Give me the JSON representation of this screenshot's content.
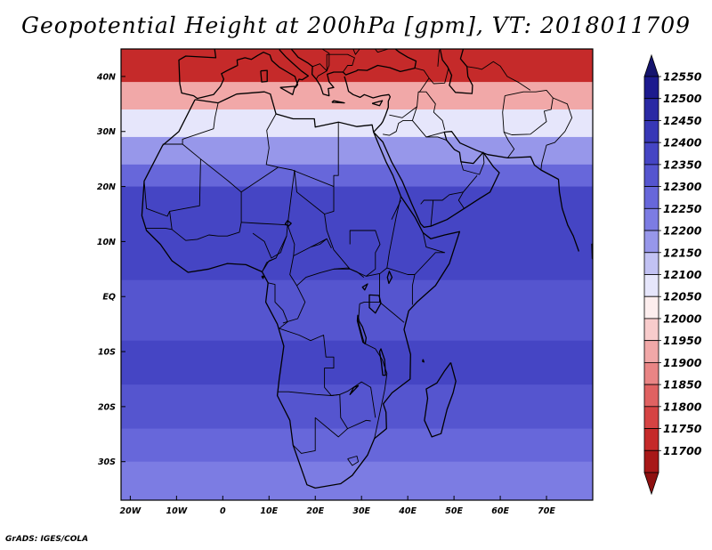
{
  "title": "Geopotential Height at 200hPa [gpm], VT: 2018011709",
  "credit": "GrADS: IGES/COLA",
  "map": {
    "lon_range": [
      -22,
      80
    ],
    "lat_range": [
      -37,
      45
    ],
    "lon_ticks": [
      {
        "value": -20,
        "label": "20W"
      },
      {
        "value": -10,
        "label": "10W"
      },
      {
        "value": 0,
        "label": "0"
      },
      {
        "value": 10,
        "label": "10E"
      },
      {
        "value": 20,
        "label": "20E"
      },
      {
        "value": 30,
        "label": "30E"
      },
      {
        "value": 40,
        "label": "40E"
      },
      {
        "value": 50,
        "label": "50E"
      },
      {
        "value": 60,
        "label": "60E"
      },
      {
        "value": 70,
        "label": "70E"
      }
    ],
    "lat_ticks": [
      {
        "value": 40,
        "label": "40N"
      },
      {
        "value": 30,
        "label": "30N"
      },
      {
        "value": 20,
        "label": "20N"
      },
      {
        "value": 10,
        "label": "10N"
      },
      {
        "value": 0,
        "label": "EQ"
      },
      {
        "value": -10,
        "label": "10S"
      },
      {
        "value": -20,
        "label": "20S"
      },
      {
        "value": -30,
        "label": "30S"
      }
    ],
    "field_bands_by_latitude": [
      {
        "lat_top": 45,
        "lat_bottom": 39,
        "value_gpm": 11750
      },
      {
        "lat_top": 39,
        "lat_bottom": 34,
        "value_gpm": 11950
      },
      {
        "lat_top": 34,
        "lat_bottom": 29,
        "value_gpm": 12100
      },
      {
        "lat_top": 29,
        "lat_bottom": 24,
        "value_gpm": 12200
      },
      {
        "lat_top": 24,
        "lat_bottom": 20,
        "value_gpm": 12300
      },
      {
        "lat_top": 20,
        "lat_bottom": 3,
        "value_gpm": 12400
      },
      {
        "lat_top": 3,
        "lat_bottom": -8,
        "value_gpm": 12350
      },
      {
        "lat_top": -8,
        "lat_bottom": -16,
        "value_gpm": 12400
      },
      {
        "lat_top": -16,
        "lat_bottom": -24,
        "value_gpm": 12350
      },
      {
        "lat_top": -24,
        "lat_bottom": -30,
        "value_gpm": 12300
      },
      {
        "lat_top": -30,
        "lat_bottom": -37,
        "value_gpm": 12250
      }
    ]
  },
  "colorbar": {
    "levels": [
      {
        "label": "12550",
        "color": "#1c1a8e"
      },
      {
        "label": "12500",
        "color": "#2a29a4"
      },
      {
        "label": "12450",
        "color": "#3737b6"
      },
      {
        "label": "12400",
        "color": "#4545c4"
      },
      {
        "label": "12350",
        "color": "#5555cf"
      },
      {
        "label": "12300",
        "color": "#6767da"
      },
      {
        "label": "12250",
        "color": "#7c7ce3"
      },
      {
        "label": "12200",
        "color": "#9797ea"
      },
      {
        "label": "12150",
        "color": "#c2c2f3"
      },
      {
        "label": "12100",
        "color": "#e6e6fb"
      },
      {
        "label": "12050",
        "color": "#fdeeee"
      },
      {
        "label": "12000",
        "color": "#f8cccc"
      },
      {
        "label": "11950",
        "color": "#f1a8a8"
      },
      {
        "label": "11900",
        "color": "#e98585"
      },
      {
        "label": "11850",
        "color": "#e06262"
      },
      {
        "label": "11800",
        "color": "#d64444"
      },
      {
        "label": "11750",
        "color": "#c52a2a"
      },
      {
        "label": "11700",
        "color": "#a81818"
      }
    ],
    "top_arrow_color": "#15146e",
    "bottom_arrow_color": "#8e1010"
  }
}
